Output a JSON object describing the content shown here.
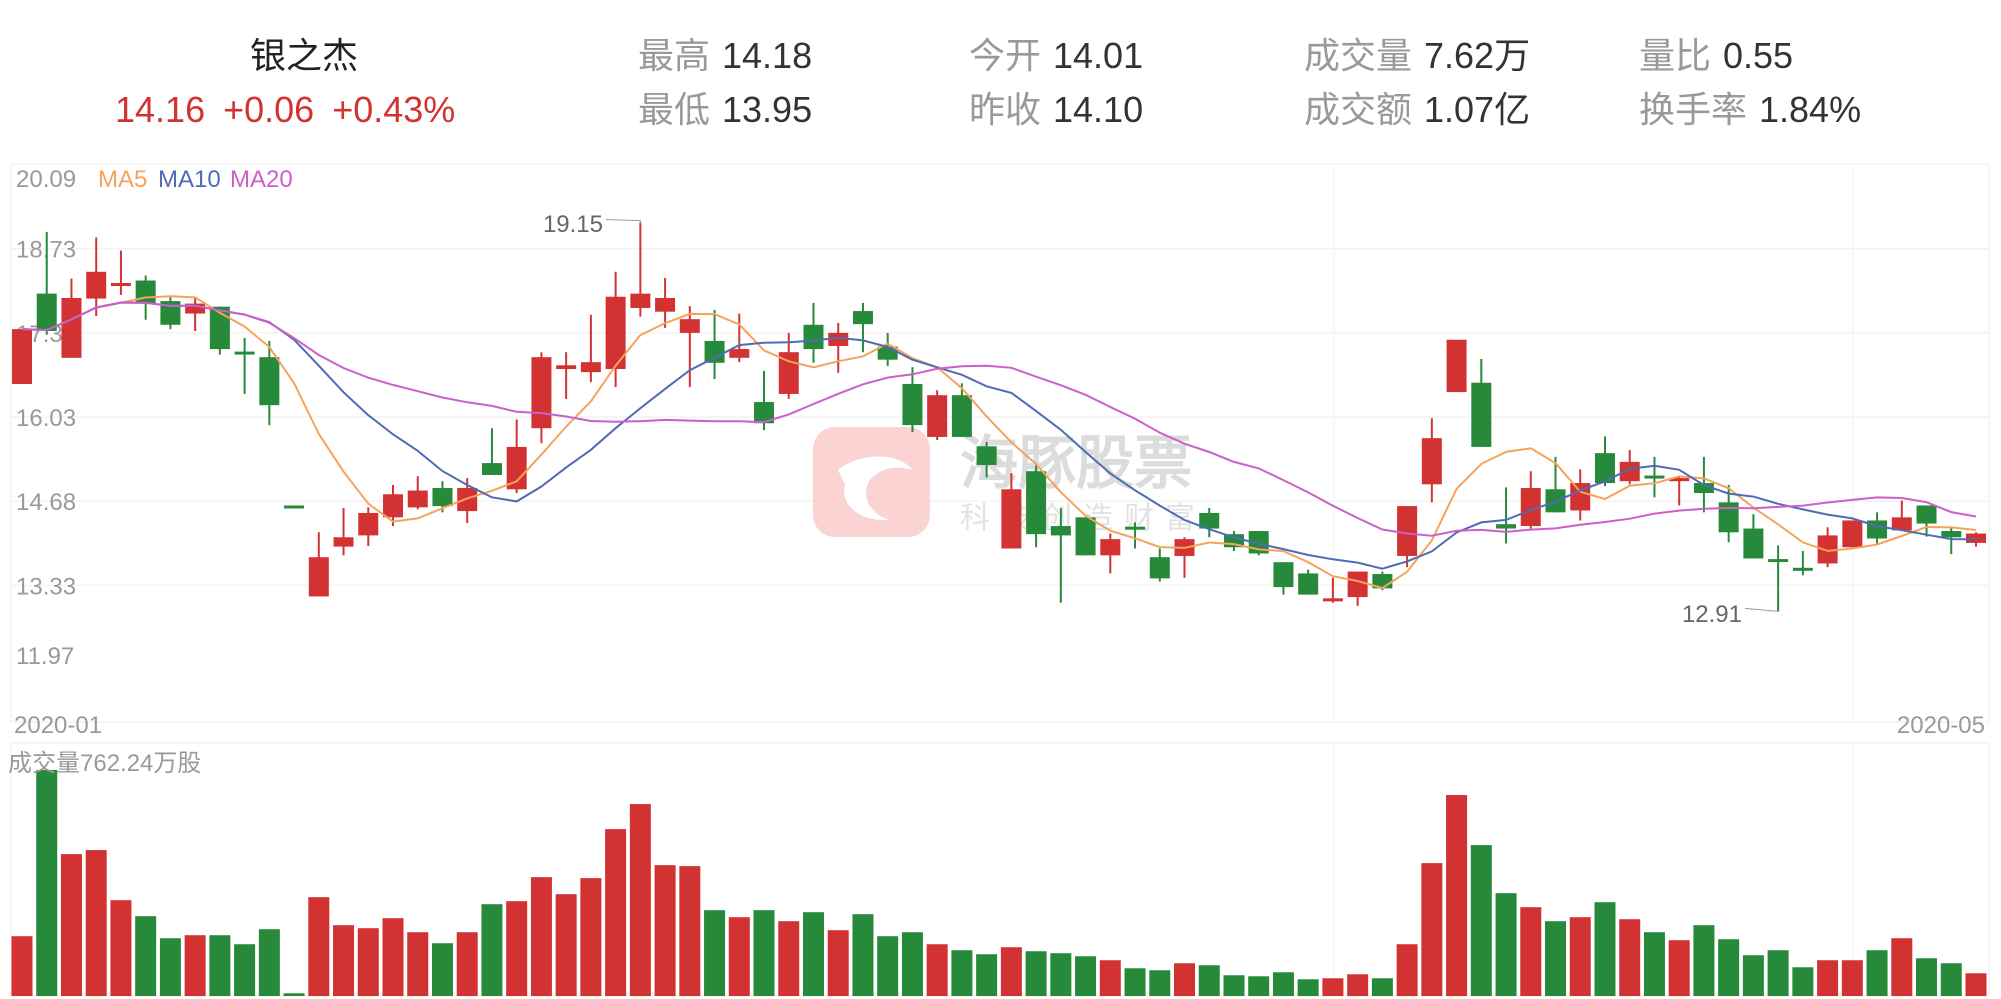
{
  "header": {
    "stock_name": "银之杰",
    "price": "14.16",
    "change": "+0.06",
    "change_pct": "+0.43%",
    "stats": [
      {
        "label": "最高",
        "value": "14.18"
      },
      {
        "label": "最低",
        "value": "13.95"
      },
      {
        "label": "今开",
        "value": "14.01"
      },
      {
        "label": "昨收",
        "value": "14.10"
      },
      {
        "label": "成交量",
        "value": "7.62万"
      },
      {
        "label": "成交额",
        "value": "1.07亿"
      },
      {
        "label": "量比",
        "value": "0.55"
      },
      {
        "label": "换手率",
        "value": "1.84%"
      }
    ]
  },
  "watermark": {
    "brand": "海豚股票",
    "slogan": "科技创造财富"
  },
  "colors": {
    "up": "#d23232",
    "down": "#27893a",
    "ma5": "#f5a35b",
    "ma10": "#4f6bb5",
    "ma20": "#cc5fc8",
    "grid": "#eeeeee",
    "text": "#999999"
  },
  "chart_data": [
    {
      "type": "candlestick",
      "legend": [
        "MA5",
        "MA10",
        "MA20"
      ],
      "y_ticks": [
        "20.09",
        "18.73",
        "17.38",
        "16.03",
        "14.68",
        "13.33",
        "11.97"
      ],
      "ylim": [
        11.97,
        20.09
      ],
      "x_labels": [
        "2020-01",
        "2020-05"
      ],
      "annotations": [
        {
          "label": "19.15",
          "index": 25,
          "kind": "max"
        },
        {
          "label": "12.91",
          "index": 71,
          "kind": "min"
        }
      ],
      "grid": true,
      "ohlc": [
        [
          16.56,
          17.44,
          16.56,
          17.44
        ],
        [
          18.01,
          19.0,
          17.35,
          17.41
        ],
        [
          16.98,
          18.25,
          16.98,
          17.94
        ],
        [
          17.93,
          18.91,
          17.65,
          18.36
        ],
        [
          18.17,
          18.7,
          17.99,
          18.18
        ],
        [
          18.22,
          18.3,
          17.59,
          17.85
        ],
        [
          17.89,
          17.96,
          17.44,
          17.51
        ],
        [
          17.69,
          17.96,
          17.41,
          17.85
        ],
        [
          17.8,
          17.8,
          17.03,
          17.12
        ],
        [
          17.08,
          17.3,
          16.4,
          17.07
        ],
        [
          16.99,
          17.25,
          15.9,
          16.22
        ],
        [
          14.61,
          14.61,
          14.6,
          14.6
        ],
        [
          13.15,
          14.18,
          13.15,
          13.78
        ],
        [
          13.95,
          14.57,
          13.81,
          14.1
        ],
        [
          14.13,
          14.58,
          13.96,
          14.49
        ],
        [
          14.42,
          14.94,
          14.28,
          14.79
        ],
        [
          14.58,
          15.08,
          14.55,
          14.85
        ],
        [
          14.89,
          15.0,
          14.5,
          14.6
        ],
        [
          14.52,
          15.05,
          14.33,
          14.89
        ],
        [
          15.29,
          15.85,
          15.1,
          15.1
        ],
        [
          14.87,
          15.99,
          14.81,
          15.55
        ],
        [
          15.85,
          17.07,
          15.61,
          16.99
        ],
        [
          16.8,
          17.07,
          16.32,
          16.86
        ],
        [
          16.75,
          17.67,
          16.59,
          16.91
        ],
        [
          16.8,
          18.36,
          16.51,
          17.96
        ],
        [
          17.78,
          19.15,
          17.64,
          18.01
        ],
        [
          17.72,
          18.26,
          17.46,
          17.94
        ],
        [
          17.38,
          17.81,
          16.51,
          17.6
        ],
        [
          17.25,
          17.75,
          16.64,
          16.9
        ],
        [
          16.98,
          17.69,
          16.91,
          17.12
        ],
        [
          16.27,
          16.77,
          15.82,
          15.93
        ],
        [
          16.4,
          17.38,
          16.32,
          17.07
        ],
        [
          17.51,
          17.86,
          16.9,
          17.12
        ],
        [
          17.17,
          17.54,
          16.74,
          17.38
        ],
        [
          17.73,
          17.86,
          17.07,
          17.52
        ],
        [
          17.16,
          17.38,
          16.85,
          16.95
        ],
        [
          16.56,
          16.83,
          15.79,
          15.9
        ],
        [
          15.71,
          16.46,
          15.66,
          16.38
        ],
        [
          16.38,
          16.57,
          15.71,
          15.71
        ],
        [
          15.56,
          15.63,
          15.06,
          15.26
        ],
        [
          13.92,
          15.13,
          13.92,
          14.87
        ],
        [
          15.16,
          15.26,
          13.94,
          14.15
        ],
        [
          14.28,
          14.57,
          13.05,
          14.13
        ],
        [
          14.42,
          14.42,
          13.81,
          13.81
        ],
        [
          13.81,
          14.16,
          13.52,
          14.07
        ],
        [
          14.27,
          14.34,
          13.92,
          14.26
        ],
        [
          13.78,
          13.92,
          13.39,
          13.44
        ],
        [
          13.8,
          14.1,
          13.45,
          14.07
        ],
        [
          14.49,
          14.57,
          14.1,
          14.24
        ],
        [
          14.15,
          14.2,
          13.88,
          13.94
        ],
        [
          14.2,
          14.2,
          13.81,
          13.84
        ],
        [
          13.7,
          13.7,
          13.18,
          13.3
        ],
        [
          13.52,
          13.58,
          13.18,
          13.18
        ],
        [
          13.11,
          13.45,
          13.05,
          13.12
        ],
        [
          13.14,
          13.55,
          13.0,
          13.55
        ],
        [
          13.51,
          13.55,
          13.25,
          13.28
        ],
        [
          13.8,
          14.6,
          13.62,
          14.6
        ],
        [
          14.95,
          16.01,
          14.66,
          15.69
        ],
        [
          16.43,
          17.27,
          16.43,
          17.27
        ],
        [
          16.58,
          16.96,
          15.55,
          15.55
        ],
        [
          14.31,
          14.9,
          14.0,
          14.24
        ],
        [
          14.28,
          15.16,
          14.24,
          14.89
        ],
        [
          14.87,
          15.39,
          14.5,
          14.5
        ],
        [
          14.53,
          15.19,
          14.37,
          14.97
        ],
        [
          15.45,
          15.72,
          14.92,
          14.97
        ],
        [
          15.0,
          15.5,
          14.95,
          15.31
        ],
        [
          15.09,
          15.39,
          14.74,
          15.08
        ],
        [
          15.0,
          15.08,
          14.61,
          15.05
        ],
        [
          14.97,
          15.39,
          14.5,
          14.81
        ],
        [
          14.66,
          14.94,
          14.02,
          14.18
        ],
        [
          14.24,
          14.47,
          13.76,
          13.76
        ],
        [
          13.75,
          13.97,
          12.91,
          13.74
        ],
        [
          13.61,
          13.88,
          13.49,
          13.6
        ],
        [
          13.68,
          14.26,
          13.62,
          14.13
        ],
        [
          13.94,
          14.37,
          13.94,
          14.37
        ],
        [
          14.37,
          14.5,
          14.0,
          14.08
        ],
        [
          14.21,
          14.69,
          14.21,
          14.42
        ],
        [
          14.61,
          14.61,
          14.11,
          14.32
        ],
        [
          14.2,
          14.27,
          13.83,
          14.1
        ],
        [
          14.01,
          14.18,
          13.95,
          14.16
        ]
      ]
    },
    {
      "type": "bar",
      "title": "成交量762.24万股",
      "unit": "万股",
      "ylim": [
        0,
        8490
      ],
      "values": [
        2006,
        7584,
        4761,
        4896,
        3216,
        2678,
        1939,
        2040,
        2040,
        1737,
        2241,
        91,
        3316,
        2376,
        2275,
        2611,
        2140,
        1771,
        2140,
        3081,
        3182,
        3988,
        3417,
        3955,
        5601,
        6441,
        4392,
        4358,
        2880,
        2644,
        2880,
        2510,
        2812,
        2208,
        2745,
        2006,
        2140,
        1737,
        1536,
        1401,
        1636,
        1502,
        1435,
        1334,
        1200,
        931,
        864,
        1099,
        1032,
        696,
        662,
        796,
        561,
        595,
        729,
        595,
        1737,
        4459,
        6744,
        5064,
        3451,
        2980,
        2510,
        2644,
        3148,
        2577,
        2140,
        1872,
        2376,
        1905,
        1368,
        1536,
        964,
        1200,
        1200,
        1536,
        1939,
        1267,
        1099,
        762.24
      ]
    }
  ]
}
